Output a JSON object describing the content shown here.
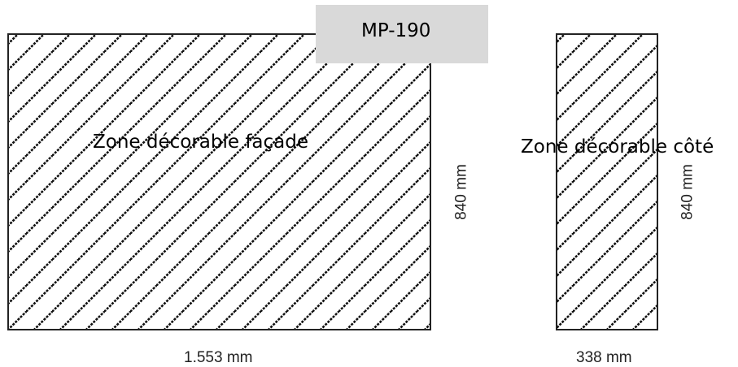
{
  "model_label": "MP-190",
  "front_zone": {
    "label": "Zone décorable façade",
    "width_label": "1.553 mm",
    "height_label": "840 mm"
  },
  "side_zone": {
    "label": "Zone décorable côté",
    "width_label": "338 mm",
    "height_label": "840 mm"
  },
  "colors": {
    "hatch": "#111111",
    "outline": "#222222",
    "label_box": "#d9d9d9"
  }
}
